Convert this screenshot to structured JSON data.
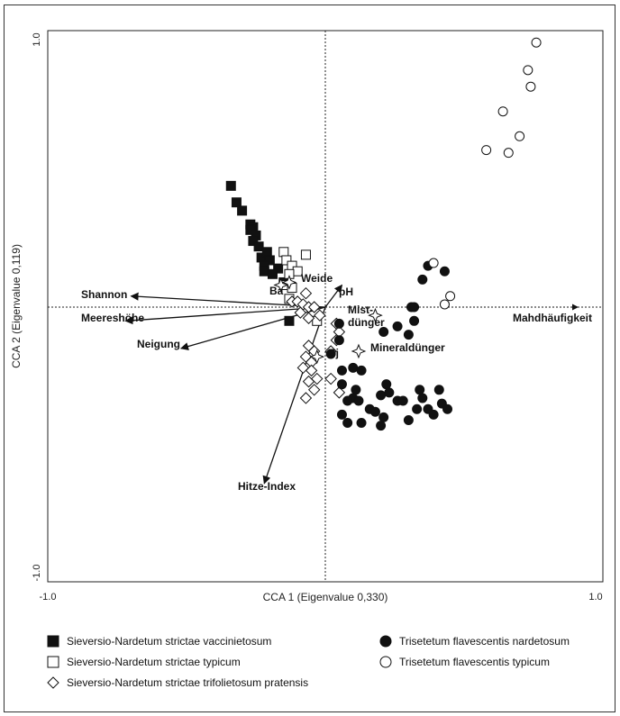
{
  "chart_data": {
    "type": "scatter",
    "xlabel": "CCA 1 (Eigenvalue 0,330)",
    "ylabel": "CCA 2 (Eigenvalue 0,119)",
    "xlim": [
      -1.0,
      1.0
    ],
    "ylim": [
      -1.0,
      1.0
    ],
    "x_ticks": [
      "-1.0",
      "1.0"
    ],
    "y_ticks": [
      "1.0",
      "-1.0"
    ],
    "grid": false,
    "zero_lines": "dotted",
    "legend": "bottom",
    "series": [
      {
        "name": "Sieversio-Nardetum strictae vaccinietosum",
        "marker": "square-filled",
        "points": [
          [
            -0.34,
            0.44
          ],
          [
            -0.32,
            0.38
          ],
          [
            -0.3,
            0.35
          ],
          [
            -0.27,
            0.3
          ],
          [
            -0.26,
            0.29
          ],
          [
            -0.27,
            0.28
          ],
          [
            -0.25,
            0.26
          ],
          [
            -0.26,
            0.24
          ],
          [
            -0.24,
            0.22
          ],
          [
            -0.23,
            0.18
          ],
          [
            -0.21,
            0.2
          ],
          [
            -0.2,
            0.17
          ],
          [
            -0.22,
            0.15
          ],
          [
            -0.17,
            0.14
          ],
          [
            -0.22,
            0.13
          ],
          [
            -0.19,
            0.12
          ],
          [
            -0.15,
            0.09
          ],
          [
            -0.13,
            -0.05
          ]
        ]
      },
      {
        "name": "Sieversio-Nardetum strictae typicum",
        "marker": "square-open",
        "points": [
          [
            -0.15,
            0.2
          ],
          [
            -0.07,
            0.19
          ],
          [
            -0.14,
            0.17
          ],
          [
            -0.12,
            0.15
          ],
          [
            -0.1,
            0.13
          ],
          [
            -0.13,
            0.12
          ],
          [
            -0.14,
            0.08
          ],
          [
            -0.12,
            0.07
          ],
          [
            -0.13,
            0.03
          ],
          [
            -0.03,
            -0.05
          ]
        ]
      },
      {
        "name": "Sieversio-Nardetum strictae trifolietosum pratensis",
        "marker": "diamond-open",
        "points": [
          [
            -0.07,
            0.05
          ],
          [
            -0.12,
            0.02
          ],
          [
            -0.1,
            0.02
          ],
          [
            -0.08,
            0.01
          ],
          [
            -0.06,
            0.0
          ],
          [
            -0.04,
            0.0
          ],
          [
            -0.09,
            -0.02
          ],
          [
            -0.06,
            -0.04
          ],
          [
            -0.02,
            -0.03
          ],
          [
            -0.06,
            -0.14
          ],
          [
            -0.04,
            -0.16
          ],
          [
            -0.07,
            -0.18
          ],
          [
            -0.05,
            -0.2
          ],
          [
            -0.08,
            -0.22
          ],
          [
            -0.05,
            -0.23
          ],
          [
            -0.03,
            -0.26
          ],
          [
            -0.06,
            -0.27
          ],
          [
            -0.04,
            -0.3
          ],
          [
            -0.07,
            -0.33
          ],
          [
            0.04,
            -0.06
          ],
          [
            0.05,
            -0.09
          ],
          [
            0.04,
            -0.12
          ],
          [
            0.02,
            -0.16
          ],
          [
            0.02,
            -0.26
          ],
          [
            0.05,
            -0.31
          ]
        ]
      },
      {
        "name": "Trisetetum flavescentis nardetosum",
        "marker": "circle-filled",
        "points": [
          [
            0.37,
            0.15
          ],
          [
            0.43,
            0.13
          ],
          [
            0.35,
            0.1
          ],
          [
            0.31,
            0.0
          ],
          [
            0.32,
            0.0
          ],
          [
            0.32,
            -0.05
          ],
          [
            0.26,
            -0.07
          ],
          [
            0.21,
            -0.09
          ],
          [
            0.3,
            -0.1
          ],
          [
            0.05,
            -0.06
          ],
          [
            0.05,
            -0.12
          ],
          [
            0.02,
            -0.17
          ],
          [
            0.06,
            -0.23
          ],
          [
            0.1,
            -0.22
          ],
          [
            0.13,
            -0.23
          ],
          [
            0.06,
            -0.28
          ],
          [
            0.11,
            -0.3
          ],
          [
            0.1,
            -0.33
          ],
          [
            0.12,
            -0.34
          ],
          [
            0.08,
            -0.34
          ],
          [
            0.16,
            -0.37
          ],
          [
            0.18,
            -0.38
          ],
          [
            0.06,
            -0.39
          ],
          [
            0.22,
            -0.28
          ],
          [
            0.2,
            -0.32
          ],
          [
            0.23,
            -0.31
          ],
          [
            0.26,
            -0.34
          ],
          [
            0.28,
            -0.34
          ],
          [
            0.33,
            -0.37
          ],
          [
            0.35,
            -0.33
          ],
          [
            0.34,
            -0.3
          ],
          [
            0.21,
            -0.4
          ],
          [
            0.08,
            -0.42
          ],
          [
            0.13,
            -0.42
          ],
          [
            0.2,
            -0.43
          ],
          [
            0.3,
            -0.41
          ],
          [
            0.41,
            -0.3
          ],
          [
            0.42,
            -0.35
          ],
          [
            0.37,
            -0.37
          ],
          [
            0.39,
            -0.39
          ],
          [
            0.44,
            -0.37
          ]
        ]
      },
      {
        "name": "Trisetetum flavescentis typicum",
        "marker": "circle-open",
        "points": [
          [
            0.76,
            0.96
          ],
          [
            0.73,
            0.86
          ],
          [
            0.74,
            0.8
          ],
          [
            0.64,
            0.71
          ],
          [
            0.7,
            0.62
          ],
          [
            0.58,
            0.57
          ],
          [
            0.66,
            0.56
          ],
          [
            0.39,
            0.16
          ],
          [
            0.45,
            0.04
          ],
          [
            0.43,
            0.01
          ]
        ]
      }
    ],
    "vectors": [
      {
        "label": "Shannon",
        "x": -0.7,
        "y": 0.04
      },
      {
        "label": "Meereshöhe",
        "x": -0.72,
        "y": -0.05
      },
      {
        "label": "Neigung",
        "x": -0.52,
        "y": -0.15
      },
      {
        "label": "Hitze-Index",
        "x": -0.22,
        "y": -0.64
      },
      {
        "label": "pH",
        "x": 0.06,
        "y": 0.08
      },
      {
        "label": "Mahdhäufigkeit",
        "x": 0.91,
        "y": 0.0
      }
    ],
    "centroids": [
      {
        "label": "Weide",
        "x": -0.13,
        "y": 0.09
      },
      {
        "label": "Ba",
        "x": -0.16,
        "y": 0.08
      },
      {
        "label": "Mist-\ndünger",
        "x": 0.18,
        "y": -0.03
      },
      {
        "label": "Mineraldünger",
        "x": 0.12,
        "y": -0.16
      },
      {
        "label": "Bj",
        "x": -0.03,
        "y": -0.18
      }
    ]
  },
  "legend_items": [
    {
      "label": "Sieversio-Nardetum strictae vaccinietosum",
      "marker": "square-filled"
    },
    {
      "label": "Sieversio-Nardetum strictae typicum",
      "marker": "square-open"
    },
    {
      "label": "Sieversio-Nardetum strictae trifolietosum pratensis",
      "marker": "diamond-open"
    },
    {
      "label": "Trisetetum flavescentis nardetosum",
      "marker": "circle-filled"
    },
    {
      "label": "Trisetetum flavescentis typicum",
      "marker": "circle-open"
    }
  ]
}
